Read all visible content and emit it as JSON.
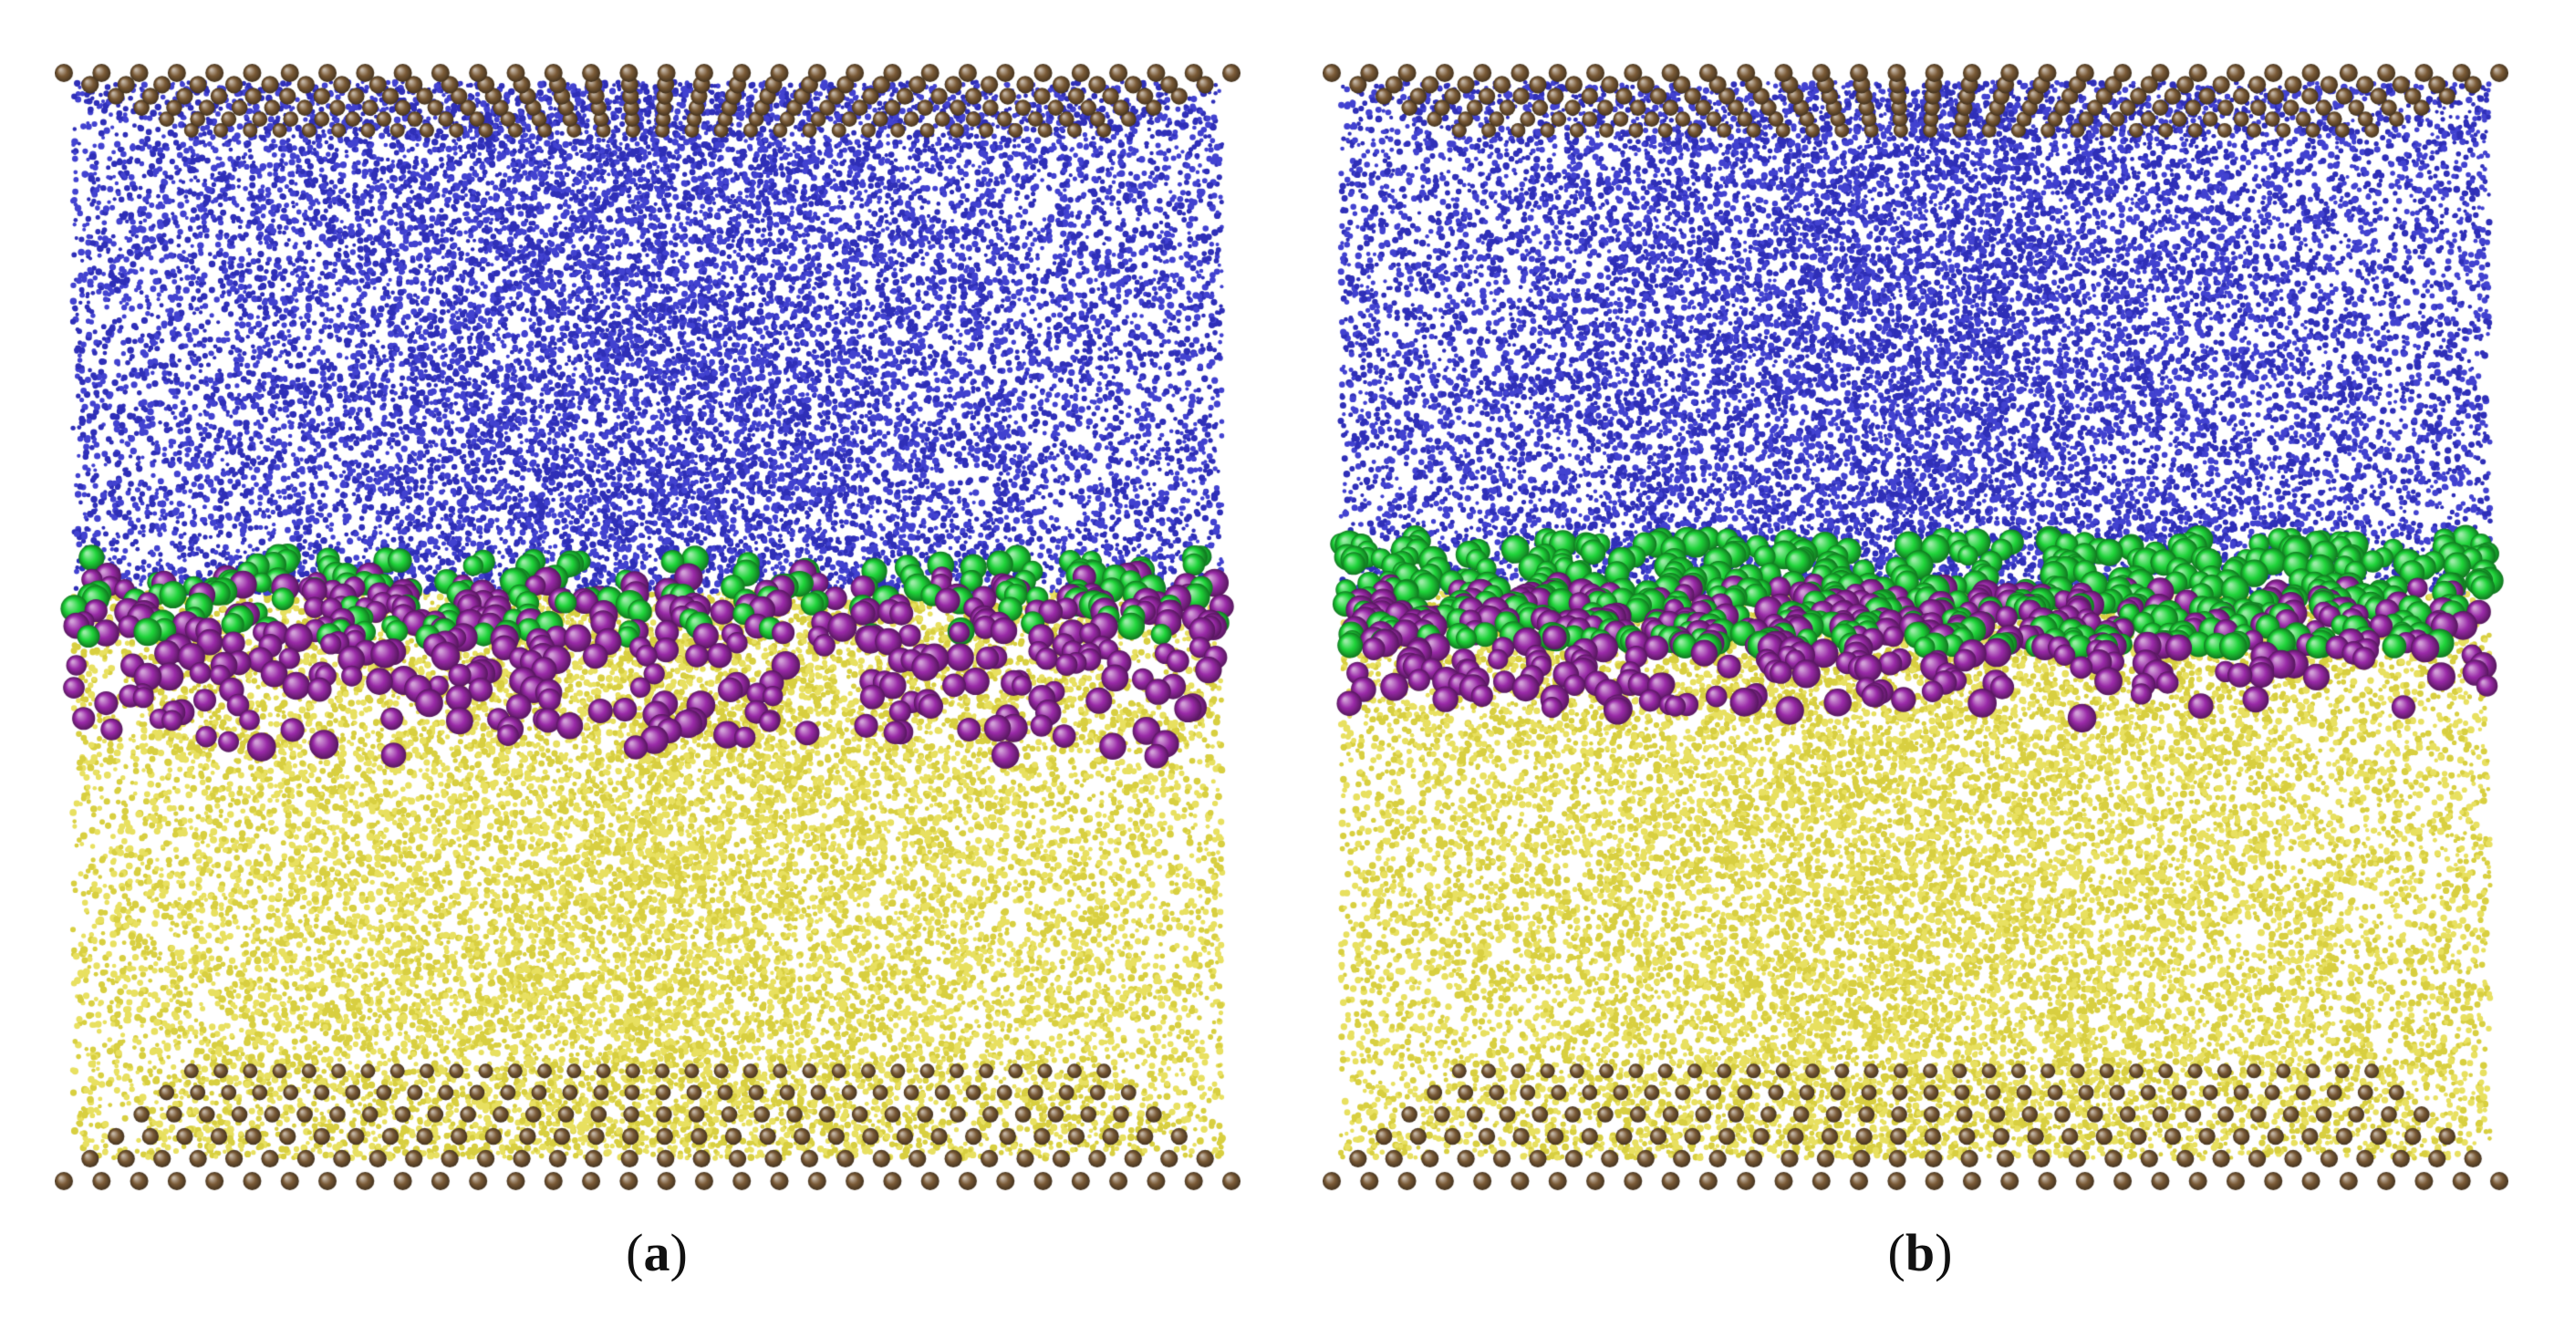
{
  "panels": [
    {
      "id": "a",
      "caption_open": "(",
      "caption_letter": "a",
      "caption_close": ")",
      "wetting_layer": "sparse"
    },
    {
      "id": "b",
      "caption_open": "(",
      "caption_letter": "b",
      "caption_close": ")",
      "wetting_layer": "dense"
    }
  ],
  "colors": {
    "wall_atoms": "#7a5a36",
    "upper_fluid": "#2f2fb8",
    "lower_fluid": "#e8e060",
    "interface_green": "#1fd43a",
    "interface_purple": "#9a2aa8",
    "background": "#ffffff"
  }
}
